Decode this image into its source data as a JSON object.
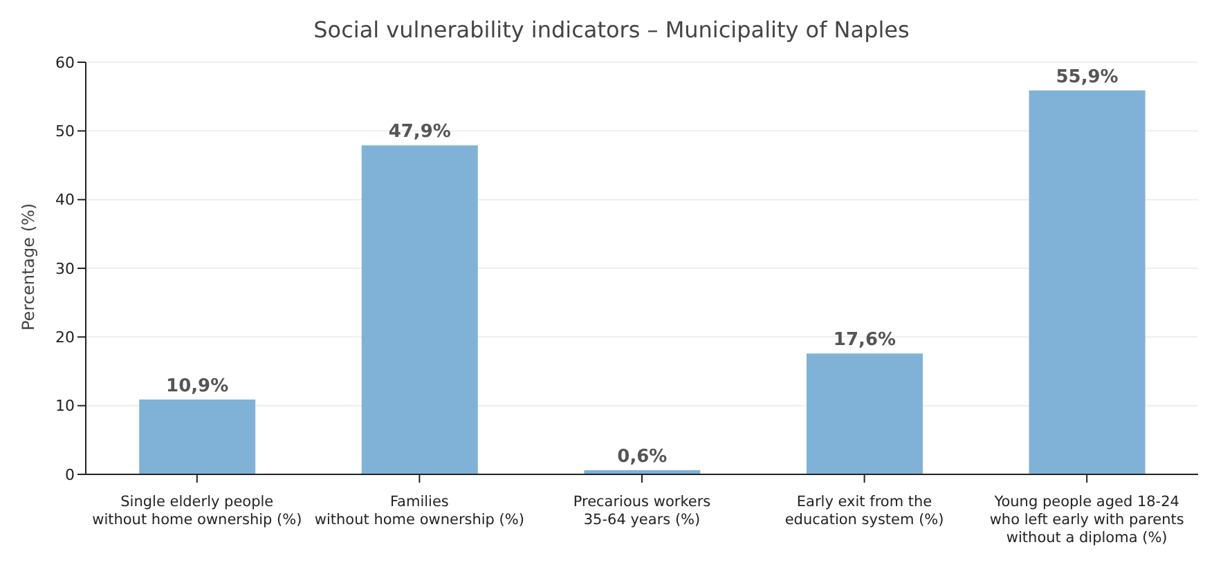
{
  "chart_data": {
    "type": "bar",
    "title": "Social vulnerability indicators – Municipality of Naples",
    "ylabel": "Percentage (%)",
    "categories": [
      "Single elderly people\nwithout home ownership (%)",
      "Families\nwithout home ownership (%)",
      "Precarious workers\n35-64 years (%)",
      "Early exit from the\neducation system (%)",
      "Young people aged 18-24\nwho left early with parents\nwithout a diploma (%)"
    ],
    "values": [
      10.9,
      47.9,
      0.6,
      17.6,
      55.9
    ],
    "value_labels": [
      "10,9%",
      "47,9%",
      "0,6%",
      "17,6%",
      "55,9%"
    ],
    "color": "#7fb2d6",
    "ylim": [
      0,
      60
    ],
    "yticks": [
      0,
      10,
      20,
      30,
      40,
      50,
      60
    ],
    "grid": "y"
  }
}
